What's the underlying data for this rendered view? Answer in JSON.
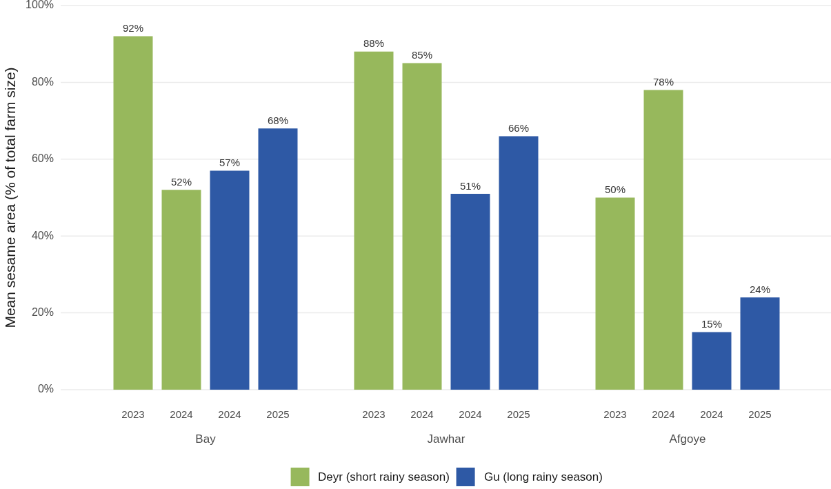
{
  "chart_data": [
    {
      "type": "bar",
      "xlabel": "Bay",
      "ylabel": "Mean sesame area (% of total farm size)",
      "categories": [
        "2023",
        "2024",
        "2024",
        "2025"
      ],
      "series": [
        {
          "color": "#97b85c",
          "values": [
            92,
            52,
            null,
            null
          ],
          "value_labels": [
            "92%",
            "52%",
            null,
            null
          ]
        },
        {
          "color": "#2e59a5",
          "values": [
            null,
            null,
            57,
            68
          ],
          "value_labels": [
            null,
            null,
            "57%",
            "68%"
          ]
        }
      ],
      "ylim": [
        0,
        100
      ],
      "yticks": [
        {
          "value": 0,
          "label": "0%"
        },
        {
          "value": 20,
          "label": "20%"
        },
        {
          "value": 40,
          "label": "40%"
        },
        {
          "value": 60,
          "label": "60%"
        },
        {
          "value": 80,
          "label": "80%"
        },
        {
          "value": 100,
          "label": "100%"
        }
      ],
      "grid": "y"
    },
    {
      "type": "bar",
      "xlabel": "Jawhar",
      "categories": [
        "2023",
        "2024",
        "2024",
        "2025"
      ],
      "series": [
        {
          "name": "Deyr (short rainy season)",
          "color": "#97b85c",
          "values": [
            88,
            85,
            null,
            null
          ],
          "value_labels": [
            "88%",
            "85%",
            null,
            null
          ]
        },
        {
          "name": "Gu (long rainy season)",
          "color": "#2e59a5",
          "values": [
            null,
            null,
            51,
            66
          ],
          "value_labels": [
            null,
            null,
            "51%",
            "66%"
          ]
        }
      ],
      "ylim": [
        0,
        100
      ],
      "yticks": [
        0,
        20,
        40,
        60,
        80,
        100
      ],
      "grid": "y",
      "tick_labels": "x",
      "legend": "bottom"
    },
    {
      "type": "bar",
      "xlabel": "Afgoye",
      "categories": [
        "2023",
        "2024",
        "2024",
        "2025"
      ],
      "series": [
        {
          "color": "#97b85c",
          "values": [
            50,
            78,
            null,
            null
          ],
          "value_labels": [
            "50%",
            "78%",
            null,
            null
          ]
        },
        {
          "color": "#2e59a5",
          "values": [
            null,
            null,
            15,
            24
          ],
          "value_labels": [
            null,
            null,
            "15%",
            "24%"
          ]
        }
      ],
      "ylim": [
        0,
        100
      ],
      "yticks": [
        0,
        20,
        40,
        60,
        80,
        100
      ],
      "grid": "y",
      "tick_labels": "x"
    }
  ]
}
